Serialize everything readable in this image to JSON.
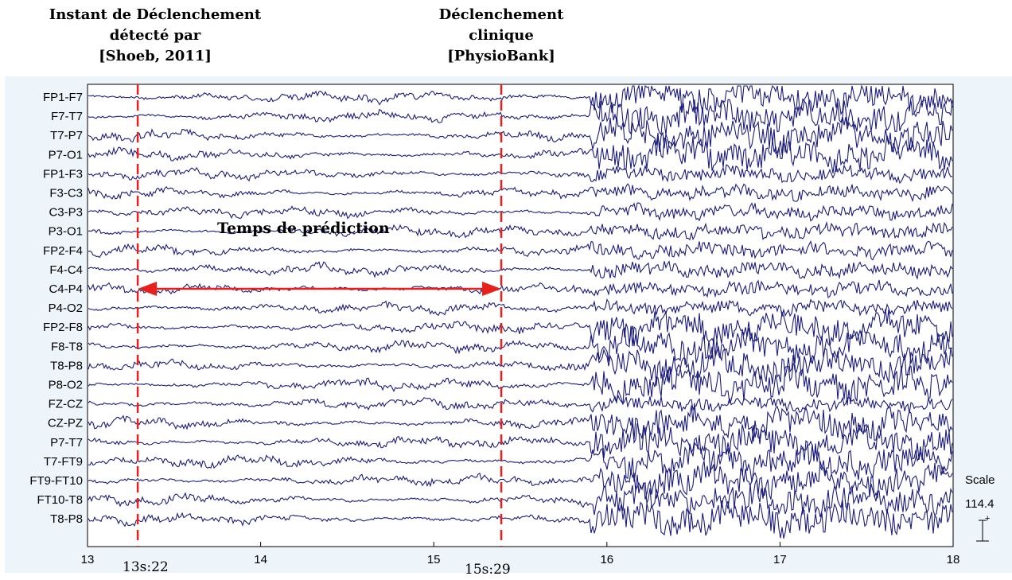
{
  "annotations": {
    "left_marker": [
      "Instant de Déclenchement",
      "détecté par",
      "[Shoeb, 2011]"
    ],
    "right_marker": [
      "Déclenchement",
      "clinique",
      "[PhysioBank]"
    ],
    "prediction": "Temps de prédiction",
    "left_time_label": "13s:22",
    "right_time_label": "15s:29"
  },
  "scale": {
    "label": "Scale",
    "value": "114.4"
  },
  "colors": {
    "trace": "#1c1c7a",
    "marker": "#e8201c",
    "panel": "#edf4fa"
  },
  "chart_data": {
    "type": "line",
    "title": "",
    "xlabel": "",
    "ylabel": "",
    "xlim": [
      13,
      18
    ],
    "x_ticks": [
      "13",
      "14",
      "15",
      "16",
      "17",
      "18"
    ],
    "channels": [
      "FP1-F7",
      "F7-T7",
      "T7-P7",
      "P7-O1",
      "FP1-F3",
      "F3-C3",
      "C3-P3",
      "P3-O1",
      "FP2-F4",
      "F4-C4",
      "C4-P4",
      "P4-O2",
      "FP2-F8",
      "F8-T8",
      "T8-P8",
      "P8-O2",
      "FZ-CZ",
      "CZ-PZ",
      "P7-T7",
      "T7-FT9",
      "FT9-FT10",
      "FT10-T8",
      "T8-P8"
    ],
    "markers": [
      {
        "x": 13.29,
        "label": "13s:22"
      },
      {
        "x": 15.39,
        "label": "15s:29"
      }
    ],
    "seizure_onset_x": 15.9
  }
}
